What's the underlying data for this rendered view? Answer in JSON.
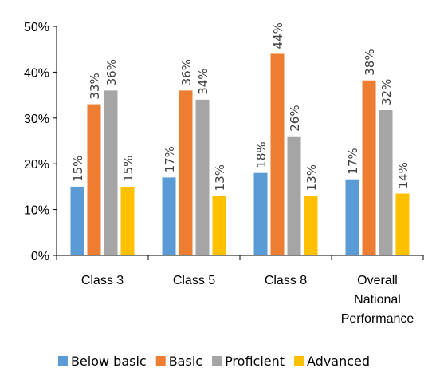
{
  "chart_data": {
    "type": "bar",
    "categories": [
      [
        "Class 3"
      ],
      [
        "Class 5"
      ],
      [
        "Class 8"
      ],
      [
        "Overall",
        "National",
        "Performance"
      ]
    ],
    "series": [
      {
        "name": "Below basic",
        "values": [
          15,
          17,
          18,
          16.6
        ],
        "labels": [
          "15%",
          "17%",
          "18%",
          "17%"
        ],
        "color": "#5B9BD5"
      },
      {
        "name": "Basic",
        "values": [
          33,
          36,
          44,
          38.2
        ],
        "labels": [
          "33%",
          "36%",
          "44%",
          "38%"
        ],
        "color": "#ED7D31"
      },
      {
        "name": "Proficient",
        "values": [
          36,
          34,
          26,
          31.7
        ],
        "labels": [
          "36%",
          "34%",
          "26%",
          "32%"
        ],
        "color": "#A5A5A5"
      },
      {
        "name": "Advanced",
        "values": [
          15,
          13,
          13,
          13.5
        ],
        "labels": [
          "15%",
          "13%",
          "13%",
          "14%"
        ],
        "color": "#FFC000"
      }
    ],
    "ylim": [
      0,
      50
    ],
    "yticks": [
      "0%",
      "10%",
      "20%",
      "30%",
      "40%",
      "50%"
    ],
    "grid": false,
    "legend": "bottom"
  }
}
